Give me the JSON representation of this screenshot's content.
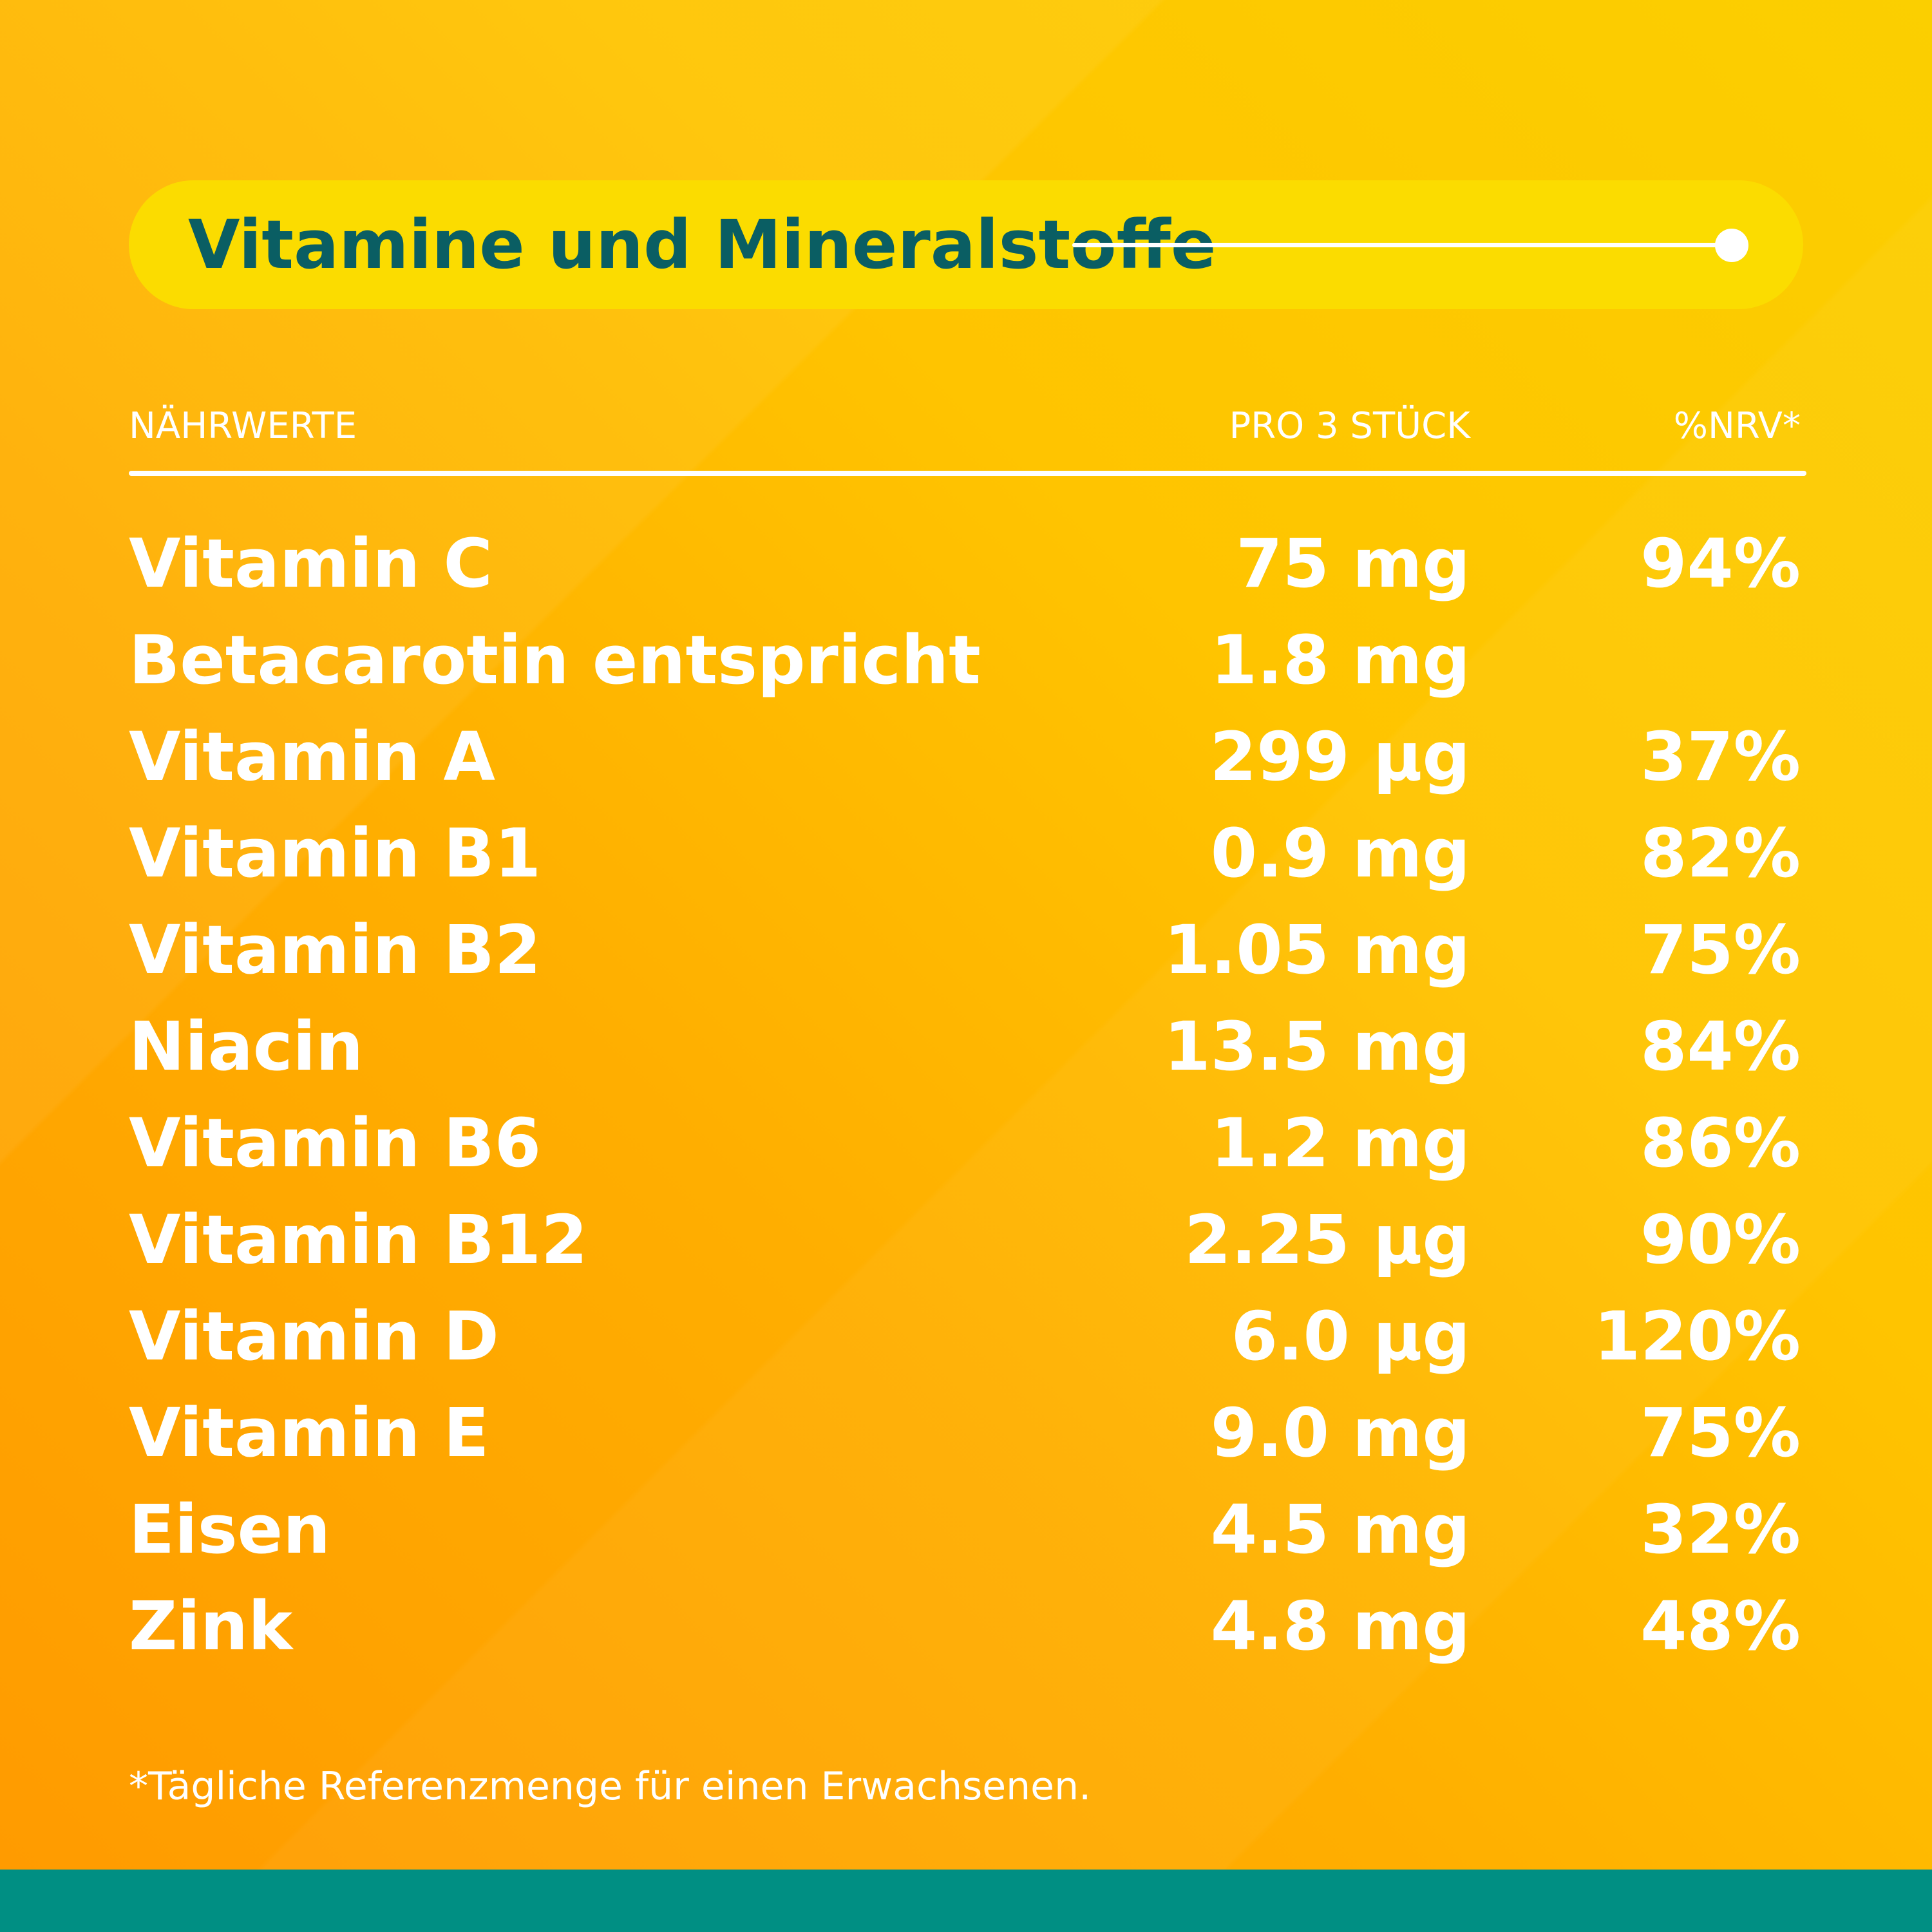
{
  "title": "Vitamine und Mineralstoffe",
  "table": {
    "headers": {
      "name": "NÄHRWERTE",
      "amount": "PRO 3 STÜCK",
      "nrv": "%NRV*"
    },
    "rows": [
      {
        "name": "Vitamin C",
        "amount": "75 mg",
        "nrv": "94%"
      },
      {
        "name": "Betacarotin entspricht",
        "amount": "1.8 mg",
        "nrv": ""
      },
      {
        "name": "Vitamin A",
        "amount": "299 µg",
        "nrv": "37%"
      },
      {
        "name": "Vitamin B1",
        "amount": "0.9 mg",
        "nrv": "82%"
      },
      {
        "name": "Vitamin B2",
        "amount": "1.05 mg",
        "nrv": "75%"
      },
      {
        "name": "Niacin",
        "amount": "13.5 mg",
        "nrv": "84%"
      },
      {
        "name": "Vitamin B6",
        "amount": "1.2 mg",
        "nrv": "86%"
      },
      {
        "name": "Vitamin B12",
        "amount": "2.25 µg",
        "nrv": "90%"
      },
      {
        "name": "Vitamin D",
        "amount": "6.0 µg",
        "nrv": "120%"
      },
      {
        "name": "Vitamin E",
        "amount": "9.0 mg",
        "nrv": "75%"
      },
      {
        "name": "Eisen",
        "amount": "4.5 mg",
        "nrv": "32%"
      },
      {
        "name": "Zink",
        "amount": "4.8 mg",
        "nrv": "48%"
      }
    ]
  },
  "footnote": "*Tägliche Referenzmenge für einen Erwachsenen.",
  "colors": {
    "title_text": "#0a5e63",
    "title_pill": "#fbdc00",
    "background_orange": "#ff9a00",
    "background_yellow": "#fbcf00",
    "bottom_bar": "#008f83",
    "text": "#ffffff"
  }
}
